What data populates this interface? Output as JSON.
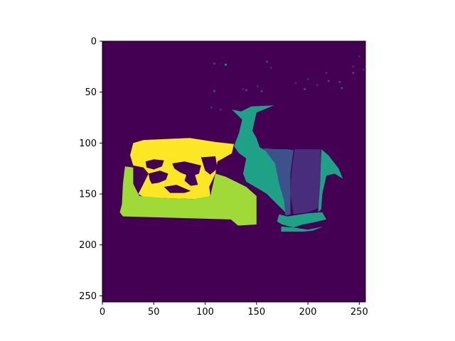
{
  "chart_data": {
    "type": "heatmap",
    "title": "",
    "xlabel": "",
    "ylabel": "",
    "xlim": [
      0,
      256
    ],
    "ylim": [
      256,
      0
    ],
    "y_inverted": true,
    "x_ticks": [
      0,
      50,
      100,
      150,
      200,
      250
    ],
    "y_ticks": [
      0,
      50,
      100,
      150,
      200,
      250
    ],
    "x_tick_labels": [
      "0",
      "50",
      "100",
      "150",
      "200",
      "250"
    ],
    "y_tick_labels": [
      "0",
      "50",
      "100",
      "150",
      "200",
      "250"
    ],
    "grid": false,
    "colormap": "viridis",
    "background_value": 0,
    "segments": [
      {
        "id": "yellow-region",
        "value": 6,
        "color": "#fde725",
        "polygon": [
          [
            30,
            100
          ],
          [
            40,
            97
          ],
          [
            85,
            95
          ],
          [
            110,
            99
          ],
          [
            128,
            101
          ],
          [
            126,
            110
          ],
          [
            112,
            118
          ],
          [
            110,
            130
          ],
          [
            104,
            143
          ],
          [
            105,
            152
          ],
          [
            90,
            155
          ],
          [
            60,
            154
          ],
          [
            40,
            153
          ],
          [
            35,
            150
          ],
          [
            40,
            140
          ],
          [
            45,
            130
          ],
          [
            40,
            124
          ],
          [
            30,
            122
          ],
          [
            27,
            112
          ]
        ]
      },
      {
        "id": "lime-region",
        "value": 5,
        "color": "#a0da39",
        "polygon": [
          [
            22,
            123
          ],
          [
            30,
            124
          ],
          [
            30,
            140
          ],
          [
            36,
            152
          ],
          [
            60,
            154
          ],
          [
            88,
            155
          ],
          [
            105,
            152
          ],
          [
            110,
            130
          ],
          [
            120,
            133
          ],
          [
            140,
            143
          ],
          [
            150,
            152
          ],
          [
            150,
            180
          ],
          [
            132,
            181
          ],
          [
            125,
            175
          ],
          [
            55,
            173
          ],
          [
            20,
            172
          ],
          [
            17,
            168
          ],
          [
            19,
            160
          ],
          [
            20,
            140
          ]
        ]
      },
      {
        "id": "teal-region",
        "value": 3,
        "color": "#1fa188",
        "polygon": [
          [
            126,
            67
          ],
          [
            135,
            69
          ],
          [
            145,
            64
          ],
          [
            167,
            63
          ],
          [
            150,
            70
          ],
          [
            146,
            88
          ],
          [
            150,
            95
          ],
          [
            153,
            104
          ],
          [
            160,
            108
          ],
          [
            170,
            110
          ],
          [
            170,
            118
          ],
          [
            175,
            135
          ],
          [
            177,
            150
          ],
          [
            180,
            170
          ],
          [
            173,
            163
          ],
          [
            160,
            150
          ],
          [
            152,
            145
          ],
          [
            140,
            138
          ],
          [
            137,
            130
          ],
          [
            140,
            115
          ],
          [
            133,
            110
          ],
          [
            128,
            103
          ],
          [
            133,
            90
          ],
          [
            136,
            77
          ]
        ]
      },
      {
        "id": "dark-blue-region",
        "value": 2,
        "color": "#3b528b",
        "polygon": [
          [
            157,
            105
          ],
          [
            168,
            106
          ],
          [
            180,
            106
          ],
          [
            186,
            107
          ],
          [
            183,
            130
          ],
          [
            183,
            150
          ],
          [
            183,
            170
          ],
          [
            178,
            171
          ],
          [
            177,
            157
          ],
          [
            172,
            140
          ],
          [
            168,
            120
          ],
          [
            162,
            112
          ]
        ]
      },
      {
        "id": "purple-region",
        "value": 1,
        "color": "#472d7b",
        "polygon": [
          [
            187,
            106
          ],
          [
            212,
            106
          ],
          [
            213,
            130
          ],
          [
            212,
            150
          ],
          [
            210,
            164
          ],
          [
            200,
            168
          ],
          [
            186,
            170
          ],
          [
            183,
            150
          ],
          [
            184,
            130
          ]
        ]
      },
      {
        "id": "right-teal-region",
        "value": 3,
        "color": "#1fa188",
        "polygon": [
          [
            213,
            106
          ],
          [
            220,
            112
          ],
          [
            230,
            125
          ],
          [
            234,
            135
          ],
          [
            226,
            130
          ],
          [
            218,
            132
          ],
          [
            214,
            150
          ],
          [
            213,
            165
          ],
          [
            210,
            168
          ],
          [
            212,
            140
          ]
        ]
      },
      {
        "id": "bottom-teal-region",
        "value": 3,
        "color": "#1fa188",
        "polygon": [
          [
            172,
            170
          ],
          [
            180,
            172
          ],
          [
            200,
            169
          ],
          [
            214,
            168
          ],
          [
            218,
            175
          ],
          [
            205,
            178
          ],
          [
            195,
            180
          ],
          [
            186,
            183
          ],
          [
            175,
            180
          ],
          [
            170,
            177
          ]
        ]
      },
      {
        "id": "bottom-teal-strip",
        "value": 3,
        "color": "#1fa188",
        "polygon": [
          [
            174,
            182
          ],
          [
            186,
            183
          ],
          [
            200,
            185
          ],
          [
            215,
            182
          ],
          [
            205,
            186
          ],
          [
            195,
            187
          ],
          [
            180,
            187
          ],
          [
            174,
            187
          ]
        ]
      }
    ],
    "holes": [
      {
        "id": "hole-1",
        "value": 0,
        "color": "#440154",
        "polygon": [
          [
            42,
            118
          ],
          [
            50,
            116
          ],
          [
            60,
            117
          ],
          [
            58,
            123
          ],
          [
            50,
            126
          ],
          [
            43,
            124
          ]
        ]
      },
      {
        "id": "hole-2",
        "value": 0,
        "color": "#440154",
        "polygon": [
          [
            45,
            130
          ],
          [
            56,
            127
          ],
          [
            64,
            130
          ],
          [
            62,
            136
          ],
          [
            55,
            139
          ],
          [
            48,
            140
          ],
          [
            46,
            136
          ]
        ]
      },
      {
        "id": "hole-3",
        "value": 0,
        "color": "#440154",
        "polygon": [
          [
            68,
            120
          ],
          [
            80,
            118
          ],
          [
            96,
            122
          ],
          [
            94,
            130
          ],
          [
            86,
            133
          ],
          [
            76,
            129
          ],
          [
            70,
            125
          ]
        ]
      },
      {
        "id": "hole-4",
        "value": 0,
        "color": "#440154",
        "polygon": [
          [
            82,
            130
          ],
          [
            90,
            131
          ],
          [
            93,
            141
          ],
          [
            86,
            142
          ],
          [
            80,
            137
          ]
        ]
      },
      {
        "id": "hole-5",
        "value": 0,
        "color": "#440154",
        "polygon": [
          [
            96,
            114
          ],
          [
            110,
            113
          ],
          [
            112,
            125
          ],
          [
            105,
            131
          ],
          [
            100,
            127
          ]
        ]
      },
      {
        "id": "hole-6",
        "value": 0,
        "color": "#440154",
        "polygon": [
          [
            60,
            143
          ],
          [
            72,
            141
          ],
          [
            86,
            147
          ],
          [
            80,
            149
          ],
          [
            66,
            149
          ]
        ]
      }
    ],
    "scatter_points": [
      {
        "x": 109,
        "y": 22,
        "value": 2,
        "color": "#3b528b"
      },
      {
        "x": 120,
        "y": 23,
        "value": 3,
        "color": "#1fa188"
      },
      {
        "x": 160,
        "y": 20,
        "value": 2,
        "color": "#3b528b"
      },
      {
        "x": 164,
        "y": 26,
        "value": 1,
        "color": "#472d7b"
      },
      {
        "x": 188,
        "y": 41,
        "value": 1,
        "color": "#472d7b"
      },
      {
        "x": 197,
        "y": 47,
        "value": 2,
        "color": "#3b528b"
      },
      {
        "x": 200,
        "y": 37,
        "value": 1,
        "color": "#472d7b"
      },
      {
        "x": 209,
        "y": 43,
        "value": 1,
        "color": "#472d7b"
      },
      {
        "x": 218,
        "y": 31,
        "value": 1,
        "color": "#472d7b"
      },
      {
        "x": 220,
        "y": 39,
        "value": 2,
        "color": "#3b528b"
      },
      {
        "x": 231,
        "y": 40,
        "value": 2,
        "color": "#3b528b"
      },
      {
        "x": 233,
        "y": 46,
        "value": 2,
        "color": "#3b528b"
      },
      {
        "x": 244,
        "y": 25,
        "value": 1,
        "color": "#472d7b"
      },
      {
        "x": 244,
        "y": 31,
        "value": 2,
        "color": "#3b528b"
      },
      {
        "x": 250,
        "y": 15,
        "value": 1,
        "color": "#472d7b"
      },
      {
        "x": 254,
        "y": 28,
        "value": 1,
        "color": "#472d7b"
      },
      {
        "x": 137,
        "y": 47,
        "value": 1,
        "color": "#472d7b"
      },
      {
        "x": 140,
        "y": 48,
        "value": 2,
        "color": "#3b528b"
      },
      {
        "x": 151,
        "y": 44,
        "value": 1,
        "color": "#472d7b"
      },
      {
        "x": 155,
        "y": 49,
        "value": 2,
        "color": "#3b528b"
      },
      {
        "x": 109,
        "y": 49,
        "value": 2,
        "color": "#3b528b"
      },
      {
        "x": 106,
        "y": 65,
        "value": 1,
        "color": "#472d7b"
      },
      {
        "x": 115,
        "y": 67,
        "value": 1,
        "color": "#472d7b"
      }
    ]
  }
}
